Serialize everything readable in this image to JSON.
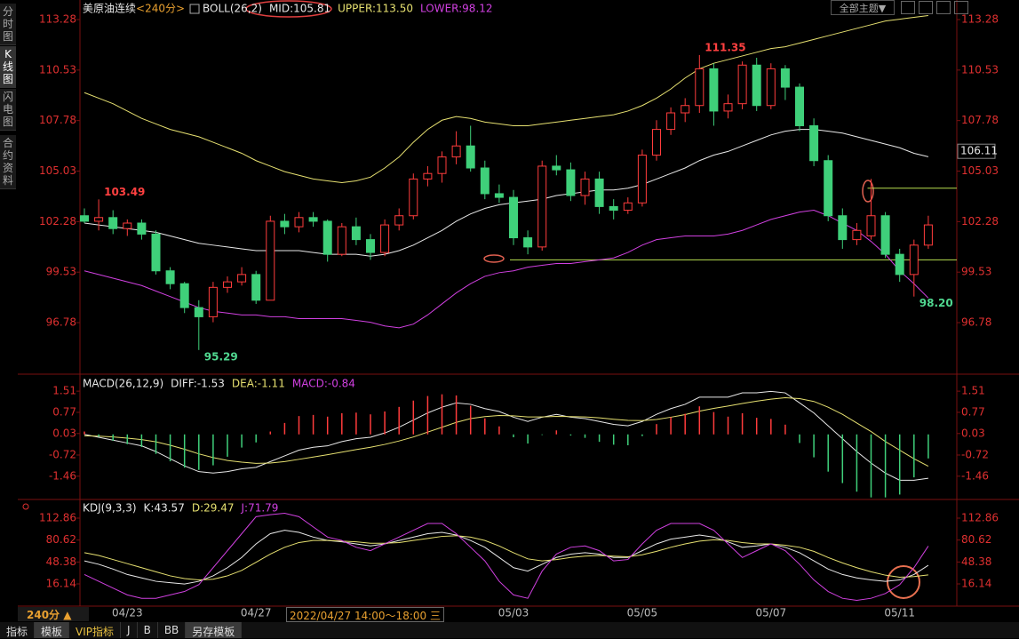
{
  "ui": {
    "sidebar_tabs": [
      "分时图",
      "K线图",
      "闪电图",
      "合约资料"
    ],
    "top_button": "全部主题▼",
    "period_button": "240分 ▲",
    "cursor_label": "2022/04/27 14:00～18:00 三",
    "bottom_tabs": [
      "指标",
      "模板",
      "VIP指标",
      "J",
      "B",
      "BB",
      "另存模板"
    ]
  },
  "chart_data": [
    {
      "type": "candlestick",
      "title": "美原油连续",
      "period": "<240分>",
      "indicator": "BOLL(26,2)",
      "up_color": "#ff3c3c",
      "down_color": "#3fd07a",
      "categories": [
        null,
        null,
        null,
        "04/23",
        null,
        null,
        null,
        null,
        null,
        null,
        null,
        null,
        "04/27",
        null,
        null,
        null,
        null,
        null,
        null,
        null,
        null,
        null,
        null,
        null,
        null,
        null,
        null,
        null,
        null,
        null,
        "05/03",
        null,
        null,
        null,
        null,
        null,
        null,
        null,
        null,
        "05/05",
        null,
        null,
        null,
        null,
        null,
        null,
        null,
        null,
        "05/07",
        null,
        null,
        null,
        null,
        null,
        null,
        null,
        null,
        "05/11",
        null,
        null
      ],
      "candles": [
        [
          102.6,
          103.0,
          102.2,
          102.3
        ],
        [
          102.3,
          103.49,
          101.8,
          102.5
        ],
        [
          102.5,
          102.9,
          101.6,
          101.9
        ],
        [
          101.9,
          102.4,
          101.5,
          102.2
        ],
        [
          102.2,
          102.4,
          101.3,
          101.6
        ],
        [
          101.6,
          101.8,
          99.4,
          99.6
        ],
        [
          99.6,
          99.8,
          98.6,
          98.9
        ],
        [
          98.9,
          99.0,
          97.3,
          97.6
        ],
        [
          97.6,
          98.0,
          95.29,
          97.1
        ],
        [
          97.1,
          99.0,
          96.8,
          98.7
        ],
        [
          98.7,
          99.3,
          98.4,
          99.0
        ],
        [
          99.0,
          99.8,
          98.8,
          99.4
        ],
        [
          99.4,
          99.6,
          97.8,
          98.0
        ],
        [
          98.0,
          102.6,
          98.0,
          102.3
        ],
        [
          102.3,
          102.7,
          101.6,
          102.0
        ],
        [
          102.0,
          102.8,
          101.7,
          102.5
        ],
        [
          102.5,
          102.8,
          102.0,
          102.3
        ],
        [
          102.3,
          102.4,
          100.1,
          100.5
        ],
        [
          100.5,
          102.2,
          100.4,
          102.0
        ],
        [
          102.0,
          102.5,
          101.0,
          101.3
        ],
        [
          101.3,
          101.6,
          100.2,
          100.6
        ],
        [
          100.6,
          102.4,
          100.4,
          102.1
        ],
        [
          102.1,
          103.0,
          101.8,
          102.6
        ],
        [
          102.6,
          104.9,
          102.4,
          104.6
        ],
        [
          104.6,
          105.3,
          104.2,
          104.9
        ],
        [
          104.9,
          106.1,
          104.4,
          105.8
        ],
        [
          105.8,
          107.2,
          105.4,
          106.4
        ],
        [
          106.4,
          107.5,
          105.0,
          105.2
        ],
        [
          105.2,
          105.6,
          103.5,
          103.8
        ],
        [
          103.8,
          104.3,
          103.3,
          103.6
        ],
        [
          103.6,
          104.0,
          101.0,
          101.4
        ],
        [
          101.4,
          101.8,
          100.5,
          100.9
        ],
        [
          100.9,
          105.6,
          100.7,
          105.3
        ],
        [
          105.3,
          105.9,
          104.8,
          105.1
        ],
        [
          105.1,
          105.5,
          103.4,
          103.7
        ],
        [
          103.7,
          105.0,
          103.2,
          104.6
        ],
        [
          104.6,
          105.0,
          102.7,
          103.1
        ],
        [
          103.1,
          103.5,
          102.4,
          102.9
        ],
        [
          102.9,
          103.6,
          102.7,
          103.3
        ],
        [
          103.3,
          106.2,
          103.1,
          105.9
        ],
        [
          105.9,
          107.8,
          105.6,
          107.3
        ],
        [
          107.3,
          108.5,
          107.0,
          108.2
        ],
        [
          108.2,
          109.0,
          107.7,
          108.6
        ],
        [
          108.6,
          111.35,
          108.2,
          110.6
        ],
        [
          110.6,
          110.9,
          107.5,
          108.3
        ],
        [
          108.3,
          109.2,
          107.9,
          108.7
        ],
        [
          108.7,
          111.0,
          108.4,
          110.8
        ],
        [
          110.8,
          111.2,
          108.3,
          108.6
        ],
        [
          108.6,
          110.9,
          108.4,
          110.6
        ],
        [
          110.6,
          110.8,
          108.9,
          109.6
        ],
        [
          109.6,
          109.8,
          107.2,
          107.5
        ],
        [
          107.5,
          107.9,
          105.3,
          105.6
        ],
        [
          105.6,
          105.9,
          102.3,
          102.6
        ],
        [
          102.6,
          103.0,
          100.8,
          101.3
        ],
        [
          101.3,
          102.2,
          101.0,
          101.8
        ],
        [
          101.5,
          104.6,
          101.3,
          102.6
        ],
        [
          102.6,
          102.8,
          100.3,
          100.5
        ],
        [
          100.5,
          100.8,
          99.0,
          99.4
        ],
        [
          99.4,
          101.3,
          98.2,
          101.0
        ],
        [
          101.0,
          102.6,
          100.8,
          102.1
        ]
      ],
      "series": [
        {
          "name": "MID:",
          "color": "#e8e8e8",
          "current": 105.81,
          "values": [
            102.2,
            102.1,
            102.0,
            101.9,
            101.8,
            101.7,
            101.5,
            101.3,
            101.1,
            101.0,
            100.9,
            100.8,
            100.7,
            100.7,
            100.7,
            100.7,
            100.6,
            100.5,
            100.5,
            100.5,
            100.4,
            100.5,
            100.7,
            101.0,
            101.4,
            101.8,
            102.3,
            102.7,
            103.0,
            103.2,
            103.3,
            103.4,
            103.5,
            103.7,
            103.8,
            103.9,
            104.0,
            104.0,
            104.1,
            104.3,
            104.6,
            104.9,
            105.2,
            105.6,
            105.9,
            106.1,
            106.4,
            106.7,
            107.0,
            107.2,
            107.3,
            107.3,
            107.2,
            107.1,
            106.9,
            106.7,
            106.5,
            106.3,
            106.0,
            105.81
          ]
        },
        {
          "name": "UPPER:",
          "color": "#e6e070",
          "current": {
            "value": 113.5,
            "label": "113.50"
          },
          "values": [
            109.3,
            109.0,
            108.7,
            108.3,
            107.9,
            107.6,
            107.3,
            107.1,
            106.9,
            106.6,
            106.3,
            106.0,
            105.6,
            105.3,
            105.0,
            104.8,
            104.6,
            104.5,
            104.4,
            104.5,
            104.7,
            105.2,
            105.8,
            106.6,
            107.3,
            107.8,
            108.0,
            107.9,
            107.7,
            107.6,
            107.5,
            107.5,
            107.6,
            107.7,
            107.8,
            107.9,
            108.0,
            108.1,
            108.3,
            108.6,
            109.0,
            109.5,
            110.1,
            110.6,
            110.9,
            111.1,
            111.3,
            111.5,
            111.7,
            111.8,
            112.0,
            112.2,
            112.4,
            112.6,
            112.8,
            113.0,
            113.2,
            113.3,
            113.4,
            113.5
          ]
        },
        {
          "name": "LOWER:",
          "color": "#d040e0",
          "current": 98.12,
          "values": [
            99.6,
            99.4,
            99.2,
            99.0,
            98.8,
            98.5,
            98.2,
            97.9,
            97.6,
            97.4,
            97.3,
            97.2,
            97.2,
            97.1,
            97.1,
            97.0,
            97.0,
            97.0,
            97.0,
            96.9,
            96.8,
            96.6,
            96.5,
            96.7,
            97.2,
            97.8,
            98.4,
            98.9,
            99.3,
            99.5,
            99.6,
            99.8,
            99.9,
            100.0,
            100.0,
            100.1,
            100.2,
            100.3,
            100.6,
            101.0,
            101.3,
            101.4,
            101.5,
            101.5,
            101.5,
            101.6,
            101.8,
            102.1,
            102.4,
            102.6,
            102.8,
            102.9,
            102.6,
            102.2,
            101.8,
            101.2,
            100.5,
            99.6,
            98.9,
            98.12
          ]
        }
      ],
      "high_labels": [
        103.49,
        111.35
      ],
      "low_labels": [
        95.29,
        {
          "value": 98.2,
          "label": "98.20"
        }
      ],
      "reference_lines": [
        100.2,
        104.1
      ],
      "reference_color": "#b8e050",
      "price_marker": 106.11,
      "ylim": [
        94.12,
        114.2
      ],
      "yticks": [
        113.28,
        110.53,
        107.78,
        105.03,
        102.28,
        99.53,
        96.78
      ]
    },
    {
      "type": "macd",
      "indicator": "MACD(26,12,9)",
      "series": [
        {
          "name": "DIFF:",
          "color": "#e8e8e8",
          "current": -1.53,
          "values": [
            0.0,
            -0.1,
            -0.2,
            -0.3,
            -0.4,
            -0.6,
            -0.85,
            -1.1,
            -1.3,
            -1.35,
            -1.3,
            -1.2,
            -1.15,
            -0.95,
            -0.75,
            -0.55,
            -0.45,
            -0.4,
            -0.25,
            -0.15,
            -0.1,
            0.05,
            0.25,
            0.5,
            0.75,
            0.95,
            1.1,
            1.05,
            0.9,
            0.8,
            0.6,
            0.45,
            0.6,
            0.7,
            0.6,
            0.55,
            0.45,
            0.35,
            0.3,
            0.45,
            0.7,
            0.9,
            1.05,
            1.3,
            1.3,
            1.3,
            1.45,
            1.45,
            1.5,
            1.45,
            1.1,
            0.75,
            0.3,
            -0.15,
            -0.6,
            -1.0,
            -1.35,
            -1.6,
            -1.6,
            -1.53
          ]
        },
        {
          "name": "DEA:",
          "color": "#e6e070",
          "current": -1.11,
          "values": [
            -0.05,
            -0.06,
            -0.09,
            -0.13,
            -0.18,
            -0.26,
            -0.38,
            -0.52,
            -0.68,
            -0.81,
            -0.91,
            -0.97,
            -1.01,
            -1.0,
            -0.95,
            -0.87,
            -0.79,
            -0.71,
            -0.62,
            -0.53,
            -0.45,
            -0.35,
            -0.23,
            -0.09,
            0.08,
            0.25,
            0.42,
            0.55,
            0.62,
            0.66,
            0.65,
            0.61,
            0.61,
            0.63,
            0.62,
            0.61,
            0.58,
            0.53,
            0.49,
            0.48,
            0.52,
            0.6,
            0.69,
            0.81,
            0.91,
            0.99,
            1.08,
            1.16,
            1.23,
            1.28,
            1.25,
            1.15,
            0.95,
            0.7,
            0.4,
            0.1,
            -0.25,
            -0.55,
            -0.85,
            -1.11
          ]
        },
        {
          "name": "MACD:",
          "color": "#d040e0",
          "up_color": "#ff3c3c",
          "down_color": "#3fd07a",
          "current": -0.84,
          "bars": true,
          "values": [
            0.1,
            -0.08,
            -0.22,
            -0.34,
            -0.44,
            -0.68,
            -0.94,
            -1.16,
            -1.24,
            -1.08,
            -0.78,
            -0.46,
            -0.28,
            0.1,
            0.4,
            0.64,
            0.68,
            0.62,
            0.74,
            0.76,
            0.7,
            0.8,
            0.96,
            1.18,
            1.34,
            1.4,
            1.36,
            1.0,
            0.56,
            0.28,
            -0.1,
            -0.32,
            -0.02,
            0.14,
            -0.04,
            -0.12,
            -0.26,
            -0.36,
            -0.38,
            -0.06,
            0.36,
            0.6,
            0.72,
            0.98,
            0.78,
            0.62,
            0.74,
            0.58,
            0.54,
            0.34,
            -0.3,
            -0.8,
            -1.3,
            -1.7,
            -2.0,
            -2.2,
            -2.2,
            -2.1,
            -1.5,
            -0.84
          ]
        }
      ],
      "ylim": [
        -2.21,
        2.01
      ],
      "yticks": [
        1.51,
        0.77,
        0.03,
        -0.72,
        -1.46
      ]
    },
    {
      "type": "line",
      "indicator": "KDJ(9,3,3)",
      "series": [
        {
          "name": "K:",
          "color": "#e8e8e8",
          "current": 43.57,
          "values": [
            50,
            45,
            38,
            30,
            25,
            20,
            18,
            16,
            20,
            28,
            40,
            55,
            75,
            90,
            95,
            92,
            85,
            80,
            78,
            75,
            72,
            75,
            80,
            85,
            90,
            92,
            88,
            80,
            70,
            55,
            40,
            35,
            45,
            55,
            60,
            62,
            60,
            55,
            55,
            65,
            75,
            82,
            85,
            88,
            85,
            78,
            70,
            72,
            75,
            70,
            62,
            50,
            38,
            30,
            25,
            22,
            20,
            22,
            30,
            43.57
          ]
        },
        {
          "name": "D:",
          "color": "#e6e070",
          "current": 29.47,
          "values": [
            62,
            58,
            52,
            46,
            40,
            34,
            28,
            24,
            22,
            23,
            28,
            36,
            48,
            60,
            70,
            77,
            80,
            80,
            79,
            78,
            76,
            76,
            77,
            80,
            83,
            86,
            87,
            85,
            80,
            72,
            62,
            53,
            50,
            52,
            55,
            57,
            58,
            57,
            56,
            59,
            64,
            70,
            75,
            79,
            81,
            80,
            77,
            75,
            75,
            73,
            70,
            64,
            55,
            47,
            40,
            34,
            29,
            26,
            27,
            29.47
          ]
        },
        {
          "name": "J:",
          "color": "#d040e0",
          "current": 71.79,
          "values": [
            30,
            20,
            10,
            0,
            -5,
            -5,
            0,
            5,
            15,
            40,
            65,
            90,
            115,
            118,
            120,
            115,
            100,
            85,
            80,
            70,
            65,
            75,
            85,
            95,
            105,
            105,
            90,
            70,
            50,
            20,
            0,
            -5,
            35,
            60,
            70,
            72,
            65,
            50,
            52,
            75,
            95,
            105,
            105,
            105,
            95,
            75,
            55,
            65,
            75,
            65,
            45,
            22,
            5,
            -5,
            -8,
            -5,
            2,
            15,
            40,
            71.79
          ]
        }
      ],
      "ylim": [
        -13.9,
        136.4
      ],
      "yticks": [
        112.86,
        80.62,
        48.38,
        16.14
      ]
    }
  ]
}
